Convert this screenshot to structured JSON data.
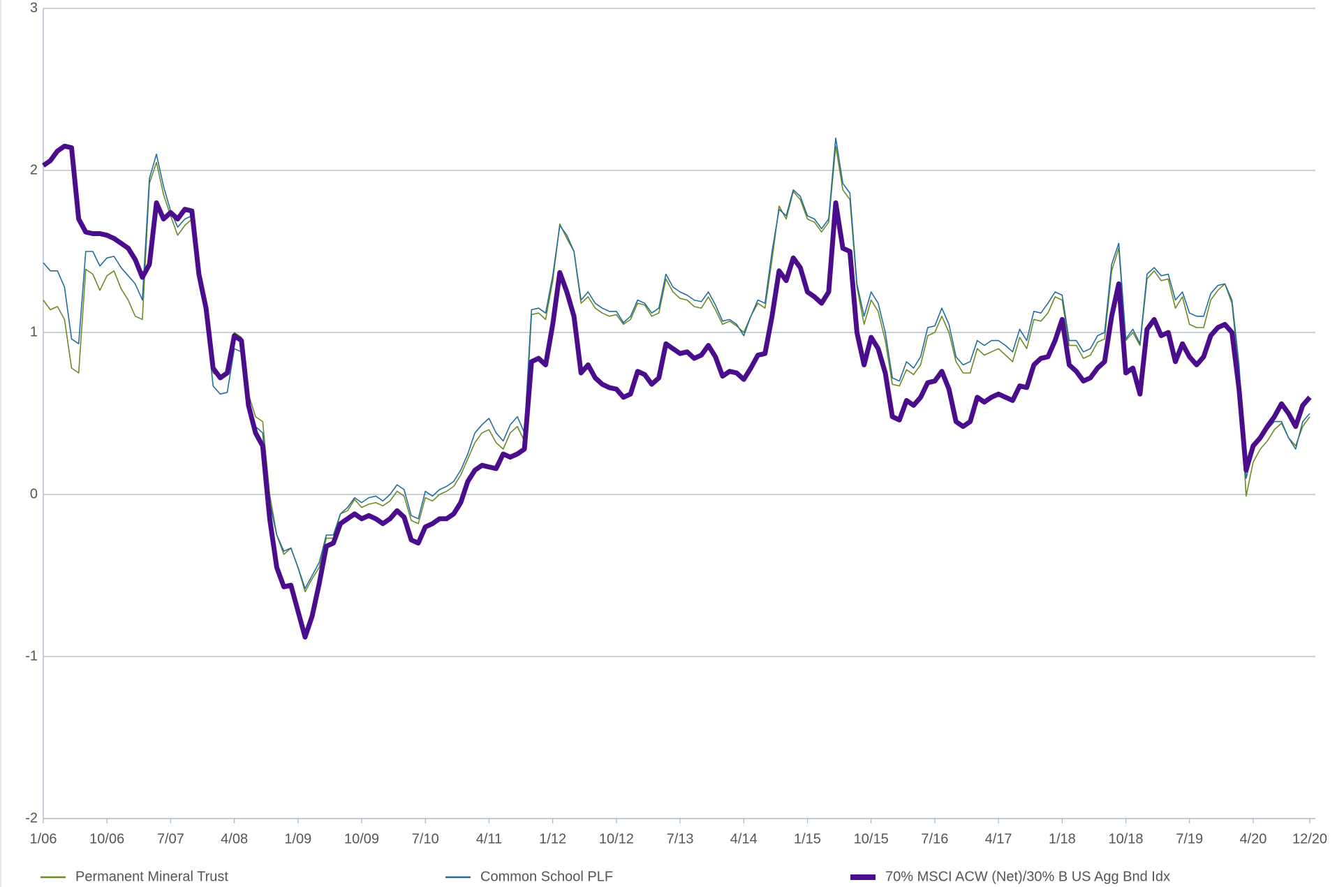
{
  "chart_data": {
    "type": "line",
    "categories": [
      "1/06",
      null,
      null,
      null,
      null,
      null,
      null,
      null,
      null,
      "10/06",
      null,
      null,
      null,
      null,
      null,
      null,
      null,
      null,
      "7/07",
      null,
      null,
      null,
      null,
      null,
      null,
      null,
      null,
      "4/08",
      null,
      null,
      null,
      null,
      null,
      null,
      null,
      null,
      "1/09",
      null,
      null,
      null,
      null,
      null,
      null,
      null,
      null,
      "10/09",
      null,
      null,
      null,
      null,
      null,
      null,
      null,
      null,
      "7/10",
      null,
      null,
      null,
      null,
      null,
      null,
      null,
      null,
      "4/11",
      null,
      null,
      null,
      null,
      null,
      null,
      null,
      null,
      "1/12",
      null,
      null,
      null,
      null,
      null,
      null,
      null,
      null,
      "10/12",
      null,
      null,
      null,
      null,
      null,
      null,
      null,
      null,
      "7/13",
      null,
      null,
      null,
      null,
      null,
      null,
      null,
      null,
      "4/14",
      null,
      null,
      null,
      null,
      null,
      null,
      null,
      null,
      "1/15",
      null,
      null,
      null,
      null,
      null,
      null,
      null,
      null,
      "10/15",
      null,
      null,
      null,
      null,
      null,
      null,
      null,
      null,
      "7/16",
      null,
      null,
      null,
      null,
      null,
      null,
      null,
      null,
      "4/17",
      null,
      null,
      null,
      null,
      null,
      null,
      null,
      null,
      "1/18",
      null,
      null,
      null,
      null,
      null,
      null,
      null,
      null,
      "10/18",
      null,
      null,
      null,
      null,
      null,
      null,
      null,
      null,
      "7/19",
      null,
      null,
      null,
      null,
      null,
      null,
      null,
      null,
      "4/20",
      null,
      null,
      null,
      null,
      null,
      null,
      null,
      "12/20"
    ],
    "series": [
      {
        "name": "Permanent Mineral Trust",
        "color": "#6b8a24",
        "width": 1.6,
        "values": [
          1.2,
          1.14,
          1.16,
          1.08,
          0.78,
          0.75,
          1.39,
          1.36,
          1.26,
          1.35,
          1.38,
          1.27,
          1.2,
          1.1,
          1.08,
          1.92,
          2.05,
          1.85,
          1.72,
          1.6,
          1.66,
          1.7,
          1.32,
          1.12,
          0.75,
          0.72,
          0.74,
          1.0,
          0.97,
          0.62,
          0.48,
          0.45,
          0.0,
          -0.25,
          -0.37,
          -0.33,
          -0.45,
          -0.6,
          -0.52,
          -0.45,
          -0.27,
          -0.27,
          -0.12,
          -0.1,
          -0.03,
          -0.08,
          -0.06,
          -0.05,
          -0.07,
          -0.04,
          0.02,
          -0.01,
          -0.16,
          -0.18,
          -0.02,
          -0.04,
          0.0,
          0.02,
          0.05,
          0.12,
          0.22,
          0.32,
          0.38,
          0.4,
          0.32,
          0.28,
          0.38,
          0.42,
          0.33,
          1.11,
          1.12,
          1.08,
          1.32,
          1.67,
          1.58,
          1.5,
          1.18,
          1.22,
          1.15,
          1.12,
          1.1,
          1.11,
          1.05,
          1.08,
          1.18,
          1.17,
          1.1,
          1.12,
          1.33,
          1.25,
          1.21,
          1.2,
          1.16,
          1.15,
          1.22,
          1.14,
          1.05,
          1.07,
          1.04,
          1.0,
          1.1,
          1.18,
          1.15,
          1.45,
          1.78,
          1.7,
          1.87,
          1.82,
          1.7,
          1.68,
          1.62,
          1.68,
          2.15,
          1.88,
          1.82,
          1.28,
          1.05,
          1.2,
          1.13,
          0.95,
          0.68,
          0.67,
          0.77,
          0.74,
          0.8,
          0.98,
          1.0,
          1.1,
          1.0,
          0.82,
          0.75,
          0.75,
          0.9,
          0.86,
          0.88,
          0.9,
          0.86,
          0.82,
          0.97,
          0.9,
          1.08,
          1.07,
          1.12,
          1.22,
          1.2,
          0.92,
          0.92,
          0.84,
          0.86,
          0.94,
          0.96,
          1.38,
          1.52,
          0.95,
          1.0,
          0.92,
          1.33,
          1.38,
          1.32,
          1.33,
          1.15,
          1.22,
          1.05,
          1.03,
          1.03,
          1.2,
          1.26,
          1.3,
          1.18,
          0.75,
          -0.01,
          0.2,
          0.28,
          0.33,
          0.4,
          0.44,
          0.35,
          0.3,
          0.42,
          0.48
        ]
      },
      {
        "name": "Common School PLF",
        "color": "#1f6e9c",
        "width": 1.6,
        "values": [
          1.43,
          1.38,
          1.38,
          1.28,
          0.96,
          0.93,
          1.5,
          1.5,
          1.41,
          1.46,
          1.47,
          1.4,
          1.35,
          1.3,
          1.2,
          1.95,
          2.1,
          1.9,
          1.75,
          1.65,
          1.7,
          1.72,
          1.3,
          1.1,
          0.67,
          0.62,
          0.63,
          0.9,
          0.88,
          0.55,
          0.42,
          0.38,
          -0.05,
          -0.25,
          -0.35,
          -0.33,
          -0.45,
          -0.58,
          -0.5,
          -0.42,
          -0.25,
          -0.25,
          -0.12,
          -0.08,
          -0.02,
          -0.05,
          -0.02,
          -0.01,
          -0.04,
          0.0,
          0.06,
          0.03,
          -0.13,
          -0.15,
          0.02,
          -0.01,
          0.03,
          0.05,
          0.08,
          0.15,
          0.25,
          0.38,
          0.43,
          0.47,
          0.38,
          0.33,
          0.43,
          0.48,
          0.38,
          1.14,
          1.15,
          1.12,
          1.35,
          1.66,
          1.6,
          1.5,
          1.2,
          1.25,
          1.18,
          1.15,
          1.13,
          1.13,
          1.06,
          1.1,
          1.2,
          1.18,
          1.12,
          1.15,
          1.36,
          1.28,
          1.25,
          1.23,
          1.2,
          1.19,
          1.25,
          1.17,
          1.07,
          1.08,
          1.05,
          0.98,
          1.1,
          1.2,
          1.18,
          1.5,
          1.76,
          1.72,
          1.88,
          1.84,
          1.72,
          1.7,
          1.64,
          1.7,
          2.2,
          1.92,
          1.86,
          1.3,
          1.1,
          1.25,
          1.18,
          1.0,
          0.72,
          0.7,
          0.82,
          0.78,
          0.85,
          1.03,
          1.04,
          1.15,
          1.05,
          0.85,
          0.8,
          0.82,
          0.95,
          0.92,
          0.95,
          0.95,
          0.92,
          0.88,
          1.02,
          0.95,
          1.13,
          1.12,
          1.18,
          1.25,
          1.23,
          0.95,
          0.95,
          0.88,
          0.9,
          0.98,
          1.0,
          1.42,
          1.55,
          0.96,
          1.02,
          0.93,
          1.36,
          1.4,
          1.35,
          1.36,
          1.2,
          1.25,
          1.12,
          1.1,
          1.1,
          1.24,
          1.29,
          1.3,
          1.2,
          0.8,
          0.1,
          0.28,
          0.35,
          0.4,
          0.45,
          0.45,
          0.35,
          0.28,
          0.45,
          0.5
        ]
      },
      {
        "name": "70% MSCI ACW (Net)/30% B US Agg Bnd Idx",
        "color": "#4a0d8c",
        "width": 7,
        "values": [
          2.03,
          2.06,
          2.12,
          2.15,
          2.14,
          1.7,
          1.62,
          1.61,
          1.61,
          1.6,
          1.58,
          1.55,
          1.52,
          1.45,
          1.34,
          1.42,
          1.8,
          1.7,
          1.74,
          1.7,
          1.76,
          1.75,
          1.36,
          1.15,
          0.78,
          0.72,
          0.75,
          0.98,
          0.95,
          0.55,
          0.38,
          0.3,
          -0.15,
          -0.45,
          -0.57,
          -0.56,
          -0.72,
          -0.88,
          -0.75,
          -0.55,
          -0.32,
          -0.3,
          -0.18,
          -0.15,
          -0.12,
          -0.15,
          -0.13,
          -0.15,
          -0.18,
          -0.15,
          -0.1,
          -0.14,
          -0.28,
          -0.3,
          -0.2,
          -0.18,
          -0.15,
          -0.15,
          -0.12,
          -0.05,
          0.08,
          0.15,
          0.18,
          0.17,
          0.16,
          0.25,
          0.23,
          0.25,
          0.28,
          0.82,
          0.84,
          0.8,
          1.05,
          1.37,
          1.25,
          1.1,
          0.75,
          0.8,
          0.72,
          0.68,
          0.66,
          0.65,
          0.6,
          0.62,
          0.76,
          0.74,
          0.68,
          0.72,
          0.93,
          0.9,
          0.87,
          0.88,
          0.84,
          0.86,
          0.92,
          0.85,
          0.73,
          0.76,
          0.75,
          0.71,
          0.78,
          0.86,
          0.87,
          1.1,
          1.38,
          1.32,
          1.46,
          1.4,
          1.25,
          1.22,
          1.18,
          1.25,
          1.8,
          1.52,
          1.5,
          1.0,
          0.8,
          0.97,
          0.9,
          0.75,
          0.48,
          0.46,
          0.58,
          0.55,
          0.6,
          0.69,
          0.7,
          0.76,
          0.65,
          0.45,
          0.42,
          0.45,
          0.6,
          0.57,
          0.6,
          0.62,
          0.6,
          0.58,
          0.67,
          0.66,
          0.8,
          0.84,
          0.85,
          0.95,
          1.08,
          0.8,
          0.76,
          0.7,
          0.72,
          0.78,
          0.82,
          1.1,
          1.3,
          0.75,
          0.78,
          0.62,
          1.02,
          1.08,
          0.98,
          1.0,
          0.82,
          0.93,
          0.85,
          0.8,
          0.85,
          0.98,
          1.03,
          1.05,
          1.0,
          0.65,
          0.15,
          0.3,
          0.35,
          0.42,
          0.48,
          0.56,
          0.5,
          0.42,
          0.55,
          0.6
        ]
      }
    ],
    "ylim": [
      -2,
      3
    ],
    "yticks": [
      -2,
      -1,
      0,
      1,
      2,
      3
    ],
    "grid": true
  }
}
